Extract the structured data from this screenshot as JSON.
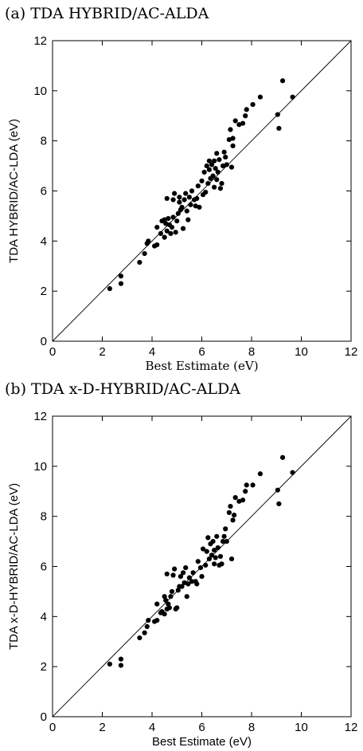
{
  "panels": [
    {
      "label": "(a) TDA HYBRID/AC-ALDA"
    },
    {
      "label": "(b) TDA x-D-HYBRID/AC-ALDA"
    }
  ],
  "chart_data": [
    {
      "type": "scatter",
      "title": "(a) TDA HYBRID/AC-ALDA",
      "xlabel": "Best Estimate (eV)",
      "ylabel": "TDA HYBRID/AC-LDA (eV)",
      "xlim": [
        0,
        12
      ],
      "ylim": [
        0,
        12
      ],
      "xticks": [
        "0",
        "2",
        "4",
        "6",
        "8",
        "10",
        "12"
      ],
      "yticks": [
        "0",
        "2",
        "4",
        "6",
        "8",
        "10",
        "12"
      ],
      "reference_line": "y = x",
      "grid": false,
      "series": [
        {
          "points": [
            [
              2.3,
              2.1
            ],
            [
              2.75,
              2.6
            ],
            [
              2.75,
              2.3
            ],
            [
              3.5,
              3.15
            ],
            [
              3.7,
              3.5
            ],
            [
              3.8,
              3.9
            ],
            [
              3.85,
              4.0
            ],
            [
              4.1,
              3.8
            ],
            [
              4.2,
              3.85
            ],
            [
              4.2,
              4.55
            ],
            [
              4.35,
              4.3
            ],
            [
              4.4,
              4.8
            ],
            [
              4.5,
              4.15
            ],
            [
              4.5,
              4.85
            ],
            [
              4.55,
              4.7
            ],
            [
              4.6,
              4.4
            ],
            [
              4.6,
              5.7
            ],
            [
              4.65,
              4.9
            ],
            [
              4.7,
              4.65
            ],
            [
              4.75,
              4.3
            ],
            [
              4.8,
              4.55
            ],
            [
              4.85,
              4.95
            ],
            [
              4.85,
              5.65
            ],
            [
              4.9,
              5.9
            ],
            [
              4.95,
              4.35
            ],
            [
              5.0,
              4.8
            ],
            [
              5.05,
              5.1
            ],
            [
              5.1,
              5.55
            ],
            [
              5.1,
              5.75
            ],
            [
              5.15,
              5.25
            ],
            [
              5.2,
              5.35
            ],
            [
              5.25,
              4.5
            ],
            [
              5.3,
              5.65
            ],
            [
              5.35,
              5.9
            ],
            [
              5.4,
              5.2
            ],
            [
              5.45,
              4.85
            ],
            [
              5.5,
              5.75
            ],
            [
              5.55,
              5.45
            ],
            [
              5.6,
              6.0
            ],
            [
              5.7,
              5.65
            ],
            [
              5.75,
              5.4
            ],
            [
              5.8,
              5.7
            ],
            [
              5.85,
              6.2
            ],
            [
              5.9,
              5.35
            ],
            [
              6.0,
              6.4
            ],
            [
              6.05,
              5.85
            ],
            [
              6.1,
              6.75
            ],
            [
              6.15,
              5.95
            ],
            [
              6.2,
              7.0
            ],
            [
              6.25,
              6.3
            ],
            [
              6.3,
              6.85
            ],
            [
              6.3,
              7.2
            ],
            [
              6.35,
              6.5
            ],
            [
              6.4,
              7.05
            ],
            [
              6.45,
              6.6
            ],
            [
              6.5,
              7.2
            ],
            [
              6.5,
              6.15
            ],
            [
              6.55,
              6.9
            ],
            [
              6.6,
              7.5
            ],
            [
              6.6,
              6.45
            ],
            [
              6.65,
              6.75
            ],
            [
              6.7,
              7.25
            ],
            [
              6.75,
              6.1
            ],
            [
              6.8,
              6.3
            ],
            [
              6.85,
              7.0
            ],
            [
              6.9,
              7.55
            ],
            [
              6.95,
              7.35
            ],
            [
              7.0,
              7.05
            ],
            [
              7.1,
              8.05
            ],
            [
              7.15,
              8.45
            ],
            [
              7.2,
              6.95
            ],
            [
              7.25,
              7.8
            ],
            [
              7.25,
              8.1
            ],
            [
              7.35,
              8.8
            ],
            [
              7.5,
              8.65
            ],
            [
              7.65,
              8.7
            ],
            [
              7.75,
              9.0
            ],
            [
              7.8,
              9.25
            ],
            [
              8.05,
              9.45
            ],
            [
              8.35,
              9.75
            ],
            [
              9.05,
              9.05
            ],
            [
              9.1,
              8.5
            ],
            [
              9.25,
              10.4
            ],
            [
              9.65,
              9.75
            ]
          ]
        }
      ]
    },
    {
      "type": "scatter",
      "title": "(b) TDA x-D-HYBRID/AC-ALDA",
      "xlabel": "Best Estimate (eV)",
      "ylabel": "TDA x-D-HYBRID/AC-LDA (eV)",
      "xlim": [
        0,
        12
      ],
      "ylim": [
        0,
        12
      ],
      "xticks": [
        "0",
        "2",
        "4",
        "6",
        "8",
        "10",
        "12"
      ],
      "yticks": [
        "0",
        "2",
        "4",
        "6",
        "8",
        "10",
        "12"
      ],
      "reference_line": "y = x",
      "grid": false,
      "series": [
        {
          "points": [
            [
              2.3,
              2.1
            ],
            [
              2.75,
              2.3
            ],
            [
              2.75,
              2.05
            ],
            [
              3.5,
              3.15
            ],
            [
              3.7,
              3.35
            ],
            [
              3.8,
              3.6
            ],
            [
              3.85,
              3.85
            ],
            [
              4.1,
              3.8
            ],
            [
              4.2,
              3.85
            ],
            [
              4.2,
              4.5
            ],
            [
              4.35,
              4.15
            ],
            [
              4.4,
              4.2
            ],
            [
              4.5,
              4.1
            ],
            [
              4.5,
              4.8
            ],
            [
              4.55,
              4.65
            ],
            [
              4.6,
              4.3
            ],
            [
              4.6,
              5.7
            ],
            [
              4.65,
              4.5
            ],
            [
              4.7,
              4.35
            ],
            [
              4.75,
              4.8
            ],
            [
              4.8,
              5.0
            ],
            [
              4.85,
              5.65
            ],
            [
              4.9,
              5.9
            ],
            [
              4.95,
              4.3
            ],
            [
              5.0,
              4.35
            ],
            [
              5.05,
              5.05
            ],
            [
              5.1,
              5.2
            ],
            [
              5.15,
              5.6
            ],
            [
              5.2,
              5.2
            ],
            [
              5.25,
              5.75
            ],
            [
              5.3,
              5.35
            ],
            [
              5.35,
              5.95
            ],
            [
              5.4,
              4.8
            ],
            [
              5.45,
              5.3
            ],
            [
              5.5,
              5.55
            ],
            [
              5.6,
              5.4
            ],
            [
              5.65,
              5.75
            ],
            [
              5.75,
              5.4
            ],
            [
              5.8,
              5.3
            ],
            [
              5.85,
              6.2
            ],
            [
              5.95,
              5.95
            ],
            [
              6.0,
              5.6
            ],
            [
              6.05,
              6.7
            ],
            [
              6.15,
              6.05
            ],
            [
              6.2,
              6.6
            ],
            [
              6.25,
              7.15
            ],
            [
              6.3,
              6.3
            ],
            [
              6.35,
              6.9
            ],
            [
              6.4,
              6.45
            ],
            [
              6.45,
              7.0
            ],
            [
              6.5,
              6.1
            ],
            [
              6.5,
              6.65
            ],
            [
              6.55,
              6.35
            ],
            [
              6.6,
              7.2
            ],
            [
              6.65,
              6.75
            ],
            [
              6.7,
              6.05
            ],
            [
              6.75,
              6.4
            ],
            [
              6.8,
              6.1
            ],
            [
              6.85,
              7.0
            ],
            [
              6.9,
              7.2
            ],
            [
              6.95,
              7.5
            ],
            [
              7.0,
              7.0
            ],
            [
              7.1,
              8.15
            ],
            [
              7.15,
              8.4
            ],
            [
              7.2,
              6.3
            ],
            [
              7.25,
              7.85
            ],
            [
              7.3,
              8.05
            ],
            [
              7.35,
              8.75
            ],
            [
              7.5,
              8.6
            ],
            [
              7.65,
              8.65
            ],
            [
              7.75,
              9.0
            ],
            [
              7.8,
              9.25
            ],
            [
              8.05,
              9.25
            ],
            [
              8.35,
              9.7
            ],
            [
              9.05,
              9.05
            ],
            [
              9.1,
              8.5
            ],
            [
              9.25,
              10.35
            ],
            [
              9.65,
              9.75
            ]
          ]
        }
      ]
    }
  ]
}
